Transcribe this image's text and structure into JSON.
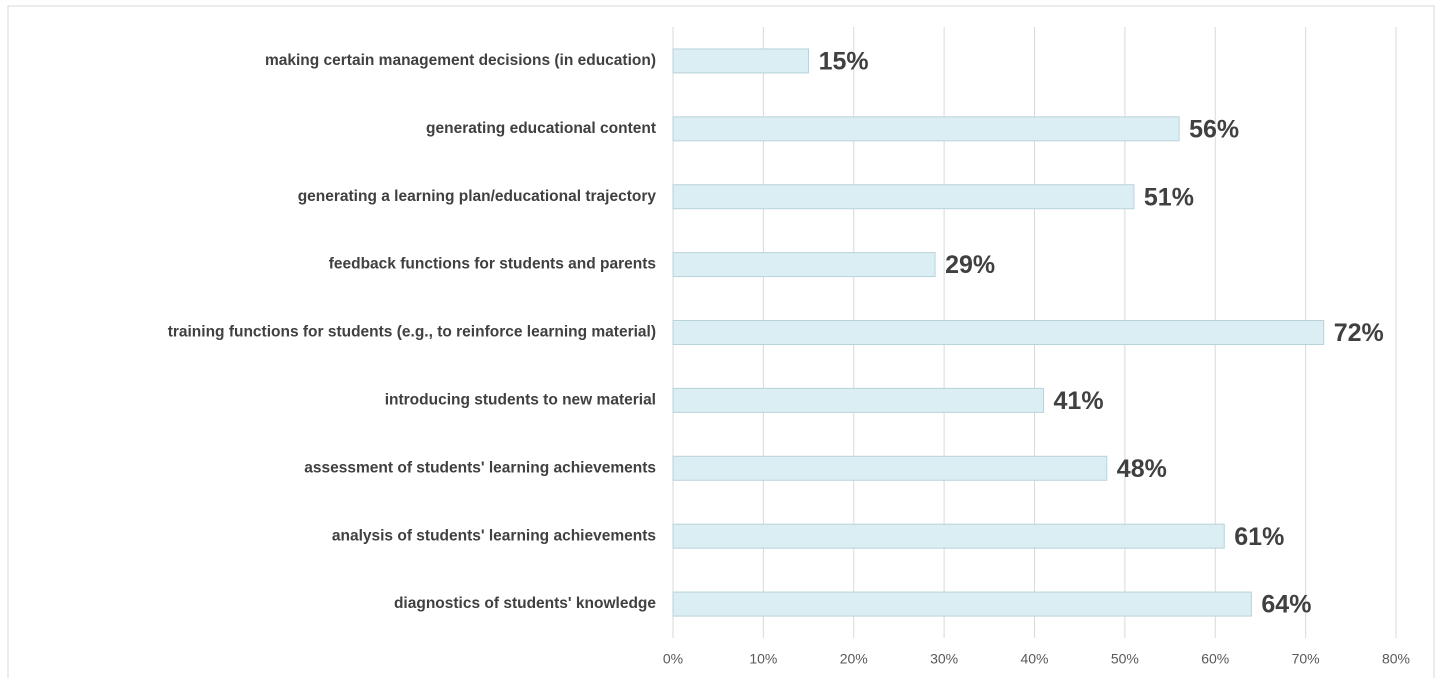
{
  "chart_data": {
    "type": "barh",
    "categories": [
      "making certain management decisions (in education)",
      "generating educational content",
      "generating a learning plan/educational trajectory",
      "feedback functions for students and parents",
      "training functions for students (e.g., to reinforce learning material)",
      "introducing students to new material",
      "assessment of students' learning achievements",
      "analysis of students' learning achievements",
      "diagnostics of students' knowledge"
    ],
    "values": [
      15,
      56,
      51,
      29,
      72,
      41,
      48,
      61,
      64
    ],
    "value_labels": [
      "15%",
      "56%",
      "51%",
      "29%",
      "72%",
      "41%",
      "48%",
      "61%",
      "64%"
    ],
    "color": "#daeef3",
    "xlim": [
      0,
      80
    ],
    "xticks": [
      {
        "value": 0,
        "label": "0%"
      },
      {
        "value": 10,
        "label": "10%"
      },
      {
        "value": 20,
        "label": "20%"
      },
      {
        "value": 30,
        "label": "30%"
      },
      {
        "value": 40,
        "label": "40%"
      },
      {
        "value": 50,
        "label": "50%"
      },
      {
        "value": 60,
        "label": "60%"
      },
      {
        "value": 70,
        "label": "70%"
      },
      {
        "value": 80,
        "label": "80%"
      }
    ],
    "grid": true
  }
}
